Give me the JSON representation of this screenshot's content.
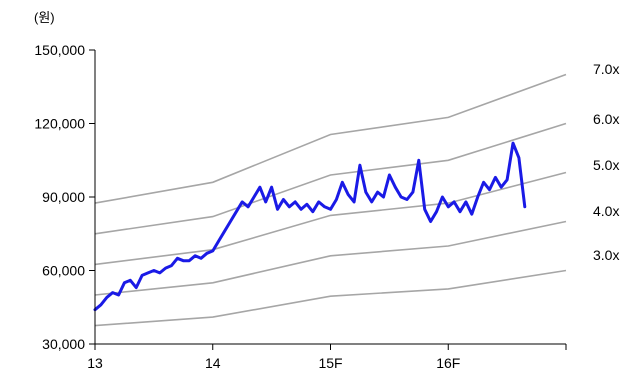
{
  "chart_data": {
    "type": "line",
    "title": "",
    "xlabel": "",
    "ylabel": "",
    "unit_label": "(원)",
    "y_axis": {
      "min": 30000,
      "max": 150000,
      "ticks": [
        30000,
        60000,
        90000,
        120000,
        150000
      ],
      "tick_labels": [
        "30,000",
        "60,000",
        "90,000",
        "120,000",
        "150,000"
      ]
    },
    "x_axis": {
      "min": 2013,
      "max": 2017,
      "ticks": [
        2013,
        2014,
        2015,
        2016
      ],
      "tick_labels": [
        "13",
        "14",
        "15F",
        "16F"
      ]
    },
    "grid": false,
    "colors": {
      "price": "#1a1ae6",
      "band": "#a6a6a6",
      "axis": "#000000"
    },
    "band_series": [
      {
        "name": "3.0x",
        "x": [
          2013,
          2014,
          2015,
          2016,
          2017
        ],
        "values": [
          37500,
          41000,
          49500,
          52500,
          60000
        ]
      },
      {
        "name": "4.0x",
        "x": [
          2013,
          2014,
          2015,
          2016,
          2017
        ],
        "values": [
          50000,
          55000,
          66000,
          70000,
          80000
        ]
      },
      {
        "name": "5.0x",
        "x": [
          2013,
          2014,
          2015,
          2016,
          2017
        ],
        "values": [
          62500,
          68500,
          82500,
          87500,
          100000
        ]
      },
      {
        "name": "6.0x",
        "x": [
          2013,
          2014,
          2015,
          2016,
          2017
        ],
        "values": [
          75000,
          82000,
          99000,
          105000,
          120000
        ]
      },
      {
        "name": "7.0x",
        "x": [
          2013,
          2014,
          2015,
          2016,
          2017
        ],
        "values": [
          87500,
          96000,
          115500,
          122500,
          140000
        ]
      }
    ],
    "price_series": {
      "name": "",
      "x": [
        2013.0,
        2013.05,
        2013.1,
        2013.15,
        2013.2,
        2013.25,
        2013.3,
        2013.35,
        2013.4,
        2013.45,
        2013.5,
        2013.55,
        2013.6,
        2013.65,
        2013.7,
        2013.75,
        2013.8,
        2013.85,
        2013.9,
        2013.95,
        2014.0,
        2014.05,
        2014.1,
        2014.15,
        2014.2,
        2014.25,
        2014.3,
        2014.35,
        2014.4,
        2014.45,
        2014.5,
        2014.55,
        2014.6,
        2014.65,
        2014.7,
        2014.75,
        2014.8,
        2014.85,
        2014.9,
        2014.95,
        2015.0,
        2015.05,
        2015.1,
        2015.15,
        2015.2,
        2015.25,
        2015.3,
        2015.35,
        2015.4,
        2015.45,
        2015.5,
        2015.55,
        2015.6,
        2015.65,
        2015.7,
        2015.75,
        2015.8,
        2015.85,
        2015.9,
        2015.95,
        2016.0,
        2016.05,
        2016.1,
        2016.15,
        2016.2,
        2016.25,
        2016.3,
        2016.35,
        2016.4,
        2016.45,
        2016.5,
        2016.55,
        2016.6,
        2016.65
      ],
      "values": [
        44000,
        46000,
        49000,
        51000,
        50000,
        55000,
        56000,
        53000,
        58000,
        59000,
        60000,
        59000,
        61000,
        62000,
        65000,
        64000,
        64000,
        66000,
        65000,
        67000,
        68000,
        72000,
        76000,
        80000,
        84000,
        88000,
        86000,
        90000,
        94000,
        88000,
        94000,
        85000,
        89000,
        86000,
        88000,
        85000,
        87000,
        84000,
        88000,
        86000,
        85000,
        89000,
        96000,
        91000,
        88000,
        103000,
        92000,
        88000,
        92000,
        90000,
        99000,
        94000,
        90000,
        89000,
        92000,
        105000,
        85000,
        80000,
        84000,
        90000,
        86000,
        88000,
        84000,
        88000,
        83000,
        90000,
        96000,
        93000,
        98000,
        94000,
        97000,
        112000,
        106000,
        86000
      ]
    }
  }
}
